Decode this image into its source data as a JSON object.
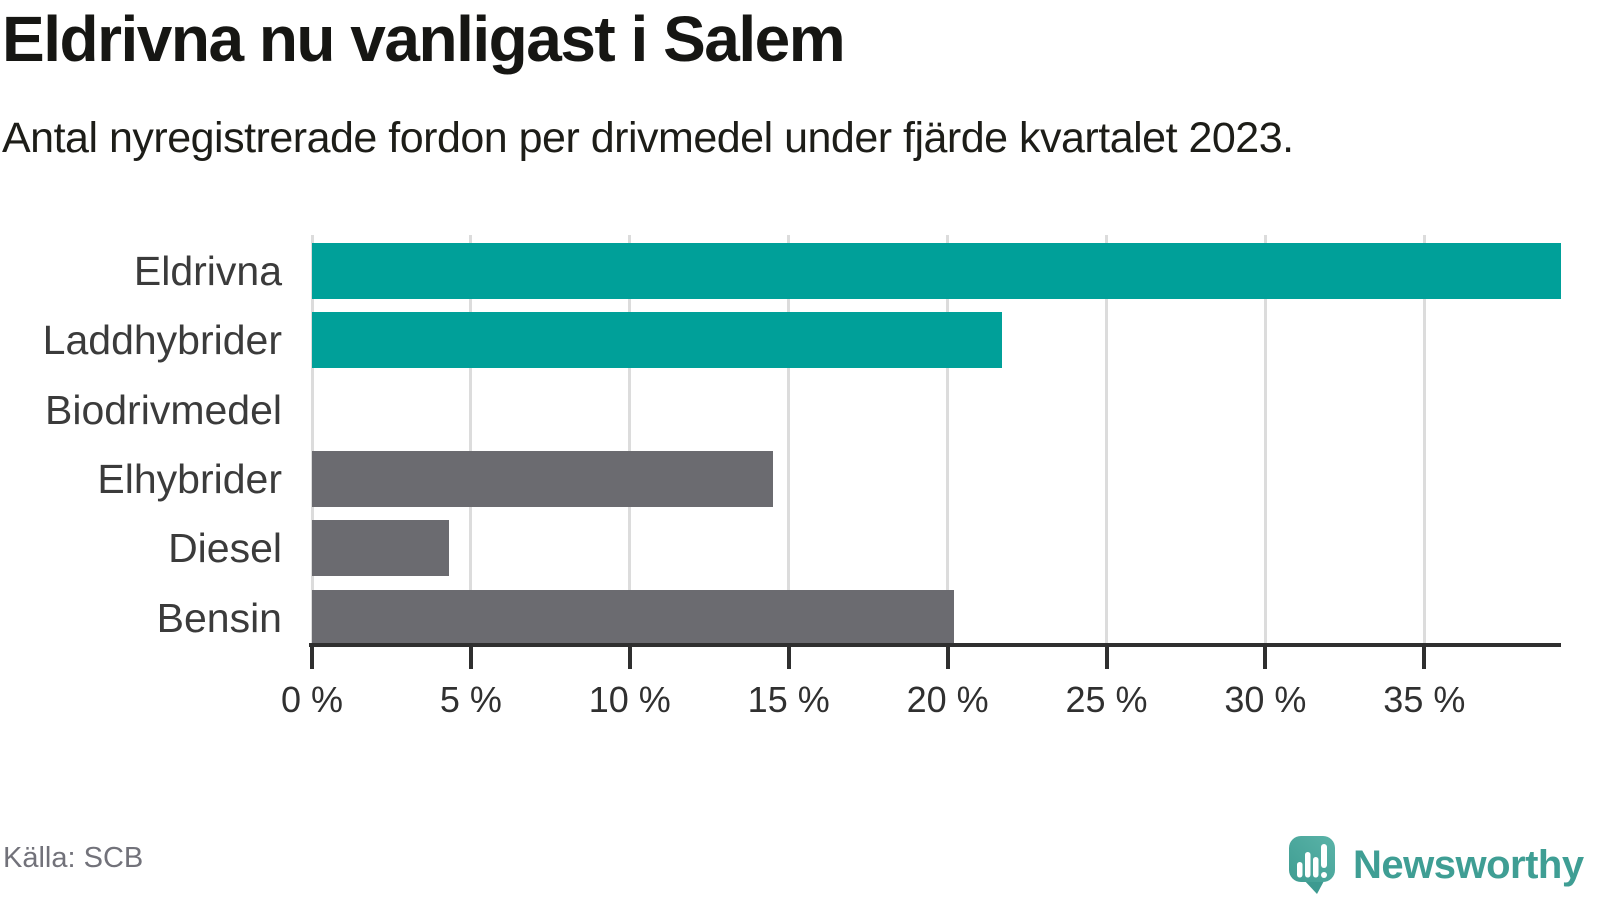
{
  "header": {
    "title": "Eldrivna nu vanligast i Salem",
    "subtitle": "Antal nyregistrerade fordon per drivmedel under fjärde kvartalet 2023."
  },
  "chart_data": {
    "type": "bar",
    "orientation": "horizontal",
    "title": "Eldrivna nu vanligast i Salem",
    "subtitle": "Antal nyregistrerade fordon per drivmedel under fjärde kvartalet 2023.",
    "categories": [
      "Eldrivna",
      "Laddhybrider",
      "Biodrivmedel",
      "Elhybrider",
      "Diesel",
      "Bensin"
    ],
    "values": [
      39.3,
      21.7,
      0,
      14.5,
      4.3,
      20.2
    ],
    "unit": "%",
    "xlim": [
      0,
      39.3
    ],
    "xlabel": "",
    "ylabel": "",
    "grid": "vertical-gridlines-on",
    "legend": "none",
    "xticks": {
      "values": [
        0,
        5,
        10,
        15,
        20,
        25,
        30,
        35
      ],
      "labels": [
        "0 %",
        "5 %",
        "10 %",
        "15 %",
        "20 %",
        "25 %",
        "30 %",
        "35 %"
      ]
    },
    "bar_colors": [
      "#00a099",
      "#00a099",
      "#6b6b70",
      "#6b6b70",
      "#6b6b70",
      "#6b6b70"
    ],
    "colors": {
      "accent": "#00a099",
      "neutral": "#6b6b70",
      "axis": "#2f2f2f",
      "gridline": "#dcdcdc"
    }
  },
  "footer": {
    "source": "Källa: SCB",
    "brand": "Newsworthy",
    "brand_color": "#3f9e94",
    "logo_icon": "newsworthy-speech-bubble-barchart-icon"
  }
}
